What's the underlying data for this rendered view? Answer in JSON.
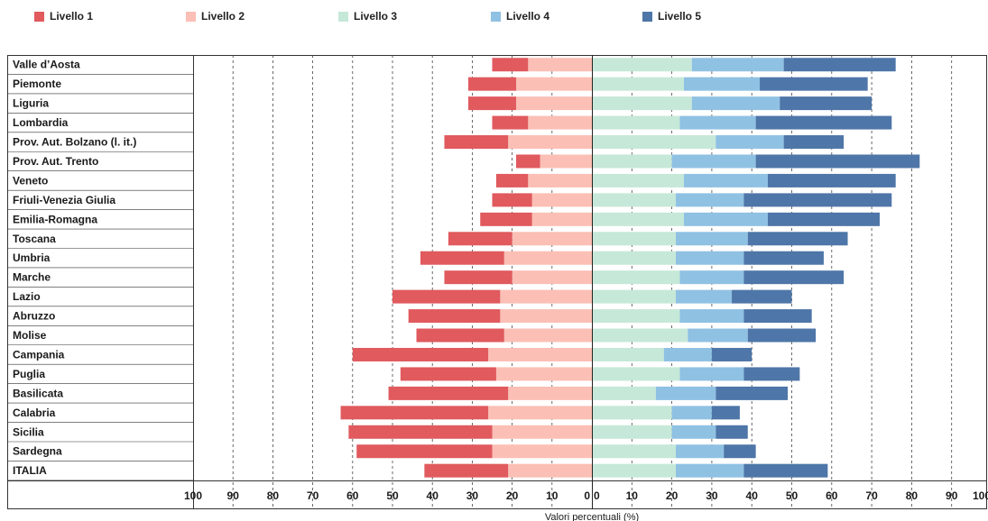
{
  "chart_data": {
    "type": "bar",
    "subtype": "diverging-stacked-horizontal",
    "xlabel": "Valori percentuali (%)",
    "legend_position": "top",
    "series": [
      {
        "name": "Livello 1",
        "color": "#e05a5e",
        "side": "left"
      },
      {
        "name": "Livello 2",
        "color": "#fbbfb5",
        "side": "left"
      },
      {
        "name": "Livello 3",
        "color": "#c6e8d8",
        "side": "right"
      },
      {
        "name": "Livello 4",
        "color": "#8fc1e3",
        "side": "right"
      },
      {
        "name": "Livello 5",
        "color": "#4e76a8",
        "side": "right"
      }
    ],
    "left_tick_labels": [
      "100",
      "90",
      "80",
      "70",
      "60",
      "50",
      "40",
      "30",
      "20",
      "10",
      "0"
    ],
    "right_tick_labels": [
      "0",
      "10",
      "20",
      "30",
      "40",
      "50",
      "60",
      "70",
      "80",
      "90",
      "100"
    ],
    "xlim_left": [
      100,
      0
    ],
    "xlim_right": [
      0,
      100
    ],
    "grid": "vertical-dashed",
    "categories": [
      {
        "name": "Valle d’Aosta",
        "values": [
          9,
          16,
          25,
          23,
          28
        ]
      },
      {
        "name": "Piemonte",
        "values": [
          12,
          19,
          23,
          19,
          27
        ]
      },
      {
        "name": "Liguria",
        "values": [
          12,
          19,
          25,
          22,
          23
        ]
      },
      {
        "name": "Lombardia",
        "values": [
          9,
          16,
          22,
          19,
          34
        ]
      },
      {
        "name": "Prov. Aut. Bolzano (l. it.)",
        "values": [
          16,
          21,
          31,
          17,
          15
        ]
      },
      {
        "name": "Prov. Aut. Trento",
        "values": [
          6,
          13,
          20,
          21,
          41
        ]
      },
      {
        "name": "Veneto",
        "values": [
          8,
          16,
          23,
          21,
          32
        ]
      },
      {
        "name": "Friuli-Venezia Giulia",
        "values": [
          10,
          15,
          21,
          17,
          37
        ]
      },
      {
        "name": "Emilia-Romagna",
        "values": [
          13,
          15,
          23,
          21,
          28
        ]
      },
      {
        "name": "Toscana",
        "values": [
          16,
          20,
          21,
          18,
          25
        ]
      },
      {
        "name": "Umbria",
        "values": [
          21,
          22,
          21,
          17,
          20
        ]
      },
      {
        "name": "Marche",
        "values": [
          17,
          20,
          22,
          16,
          25
        ]
      },
      {
        "name": "Lazio",
        "values": [
          27,
          23,
          21,
          14,
          15
        ]
      },
      {
        "name": "Abruzzo",
        "values": [
          23,
          23,
          22,
          16,
          17
        ]
      },
      {
        "name": "Molise",
        "values": [
          22,
          22,
          24,
          15,
          17
        ]
      },
      {
        "name": "Campania",
        "values": [
          34,
          26,
          18,
          12,
          10
        ]
      },
      {
        "name": "Puglia",
        "values": [
          24,
          24,
          22,
          16,
          14
        ]
      },
      {
        "name": "Basilicata",
        "values": [
          30,
          21,
          16,
          15,
          18
        ]
      },
      {
        "name": "Calabria",
        "values": [
          37,
          26,
          20,
          10,
          7
        ]
      },
      {
        "name": "Sicilia",
        "values": [
          36,
          25,
          20,
          11,
          8
        ]
      },
      {
        "name": "Sardegna",
        "values": [
          34,
          25,
          21,
          12,
          8
        ]
      },
      {
        "name": "ITALIA",
        "values": [
          21,
          21,
          21,
          17,
          21
        ]
      }
    ]
  }
}
